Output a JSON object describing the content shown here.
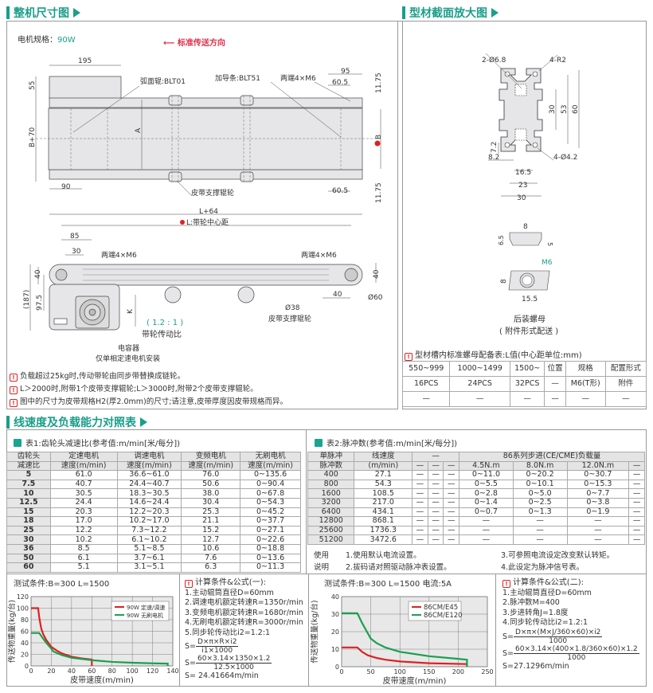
{
  "sections": {
    "dimensions": "整机尺寸图",
    "profile": "型材截面放大图",
    "speed_load": "线速度及负载能力对照表"
  },
  "motor_spec": {
    "label": "电机规格：",
    "value": "90W"
  },
  "direction": "标准传送方向",
  "top_view": {
    "d195": "195",
    "d55": "55",
    "b70": "B+70",
    "d90": "90",
    "arc_roller": "弧面辊:BLT01",
    "a": "A",
    "guide": "加导条:BLT51",
    "m6": "两端4×M6",
    "d95": "95",
    "d605a": "60.5",
    "d1175a": "11.75",
    "b": "B",
    "support": "皮带支撑辊轮",
    "d605b": "60.5",
    "d1175b": "11.75"
  },
  "side_view": {
    "l64": "L+64",
    "l_center": "L:带轮中心距",
    "d85": "85",
    "d30": "30",
    "m6_left": "两端4×M6",
    "m6_right": "两端4×M6",
    "d40a": "40",
    "d975": "97.5",
    "d187": "(187)",
    "k": "K",
    "ratio": "( 1.2 : 1 )",
    "ratio_label": "带轮传动比",
    "d38": "Ø38",
    "support": "皮带支撑辊轮",
    "d40b": "40",
    "d60": "Ø60",
    "d40c": "40",
    "capacitor": "电容器",
    "capacitor_note": "仅单相定速电机安装"
  },
  "notes": [
    "负载超过25kg时,传动带轮由同步带替换成链轮。",
    "L＞2000时,附带1个皮带支撑辊轮;L＞3000时,附带2个皮带支撑辊轮。",
    "图中的尺寸为皮带规格H2(厚2.0mm)的尺寸;请注意,皮带厚度因皮带规格而异。"
  ],
  "profile": {
    "d68": "2-Ø6.8",
    "r2": "4-R2",
    "d30": "30",
    "d53": "53",
    "d60": "60",
    "d72": "7.2",
    "d82": "8.2",
    "d42": "4-Ø4.2",
    "d165": "16.5",
    "d23": "23",
    "d30b": "30"
  },
  "nut": {
    "d8": "8",
    "d65": "6.5",
    "d5": "5",
    "m6": "M6",
    "d8b": "8",
    "d155": "15.5",
    "name": "后装螺母",
    "note": "( 附件形式配送 )"
  },
  "nut_table": {
    "title": "型材槽内标准螺母配备表:L值(中心距单位:mm)",
    "headers": [
      "550~999",
      "1000~1499",
      "1500~",
      "位置",
      "规格",
      "配置形式"
    ],
    "rows": [
      [
        "16PCS",
        "24PCS",
        "32PCS",
        "—",
        "M6(T形)",
        "附件"
      ],
      [
        "—",
        "—",
        "—",
        "—",
        "—",
        "—"
      ]
    ]
  },
  "table1": {
    "title": "表1:齿轮头减速比(参考值:m/min[米/每分])",
    "header1": [
      "齿轮头",
      "定速电机",
      "调速电机",
      "变频电机",
      "无刷电机"
    ],
    "header2": [
      "减速比",
      "速度(m/min)",
      "速度(m/min)",
      "速度(m/min)",
      "速度(m/min)"
    ],
    "rows": [
      [
        "5",
        "61.0",
        "36.6~61.0",
        "76.0",
        "0~135.6"
      ],
      [
        "7.5",
        "40.7",
        "24.4~40.7",
        "50.6",
        "0~90.4"
      ],
      [
        "10",
        "30.5",
        "18.3~30.5",
        "38.0",
        "0~67.8"
      ],
      [
        "12.5",
        "24.4",
        "14.6~24.4",
        "30.4",
        "0~54.3"
      ],
      [
        "15",
        "20.3",
        "12.2~20.3",
        "25.3",
        "0~45.2"
      ],
      [
        "18",
        "17.0",
        "10.2~17.0",
        "21.1",
        "0~37.7"
      ],
      [
        "25",
        "12.2",
        "7.3~12.2",
        "15.2",
        "0~27.1"
      ],
      [
        "30",
        "10.2",
        "6.1~10.2",
        "12.7",
        "0~22.6"
      ],
      [
        "36",
        "8.5",
        "5.1~8.5",
        "10.6",
        "0~18.8"
      ],
      [
        "50",
        "6.1",
        "3.7~6.1",
        "7.6",
        "0~13.6"
      ],
      [
        "60",
        "5.1",
        "3.1~5.1",
        "6.3",
        "0~11.3"
      ]
    ]
  },
  "table2": {
    "title": "表2:脉冲数(参考值:m/min[米/每分])",
    "header1": [
      "单脉冲",
      "线速度",
      "—",
      "86系列步进(CE/CME)负载量"
    ],
    "header2": [
      "脉冲数",
      "(m/min)",
      "—",
      "—",
      "—",
      "4.5N.m",
      "8.0N.m",
      "12.0N.m",
      "—"
    ],
    "rows": [
      [
        "400",
        "27.1",
        "—",
        "—",
        "—",
        "0~11.0",
        "0~20.2",
        "0~30.7",
        "—"
      ],
      [
        "800",
        "54.3",
        "—",
        "—",
        "—",
        "0~5.5",
        "0~10.1",
        "0~15.3",
        "—"
      ],
      [
        "1600",
        "108.5",
        "—",
        "—",
        "—",
        "0~2.8",
        "0~5.0",
        "0~7.7",
        "—"
      ],
      [
        "3200",
        "217.0",
        "—",
        "—",
        "—",
        "0~1.4",
        "0~2.5",
        "0~3.8",
        "—"
      ],
      [
        "6400",
        "434.1",
        "—",
        "—",
        "—",
        "0~0.7",
        "0~1.3",
        "0~1.9",
        "—"
      ],
      [
        "12800",
        "868.1",
        "—",
        "—",
        "—",
        "—",
        "—",
        "—",
        "—"
      ],
      [
        "25600",
        "1736.3",
        "—",
        "—",
        "—",
        "—",
        "—",
        "—",
        "—"
      ],
      [
        "51200",
        "3472.6",
        "—",
        "—",
        "—",
        "—",
        "—",
        "—",
        "—"
      ]
    ],
    "usage": {
      "label1": "使用",
      "label2": "说明",
      "n1": "1.使用默认电流设置。",
      "n2": "2.拔码请对照驱动脉冲表设置。",
      "n3": "3.可参照电流设定改变默认转矩。",
      "n4": "4.此设定为脉冲信号表。"
    }
  },
  "formula1": {
    "title": "计算条件&公式(一):",
    "lines": [
      "1.主动辊筒直径D=60mm",
      "2.调速电机额定转速R=1350r/min",
      "3.变频电机额定转速R=1680r/min",
      "4.无刷电机额定转速R=3000r/min",
      "5.同步轮传动比i2=1.2:1"
    ],
    "s": "S=",
    "f1_num": "D×π×R×i2",
    "f1_den": "i1×1000",
    "f2_num": "60×3.14×1350×1.2",
    "f2_den": "12.5×1000",
    "result": "S= 24.41664m/min"
  },
  "formula2": {
    "title": "计算条件&公式(二):",
    "lines": [
      "1.主动辊筒直径D=60mm",
      "2.脉冲数M=400",
      "3.步进转角J=1.8度",
      "4.同步轮传动比i2=1.2:1"
    ],
    "s": "S=",
    "f1_num": "D×π×(M×J/360×60)×i2",
    "f1_den": "1000",
    "f2_num": "60×3.14×(400×1.8/360×60)×1.2",
    "f2_den": "1000",
    "result": "S=27.1296m/min"
  },
  "chart_data": [
    {
      "type": "line",
      "title": "测试条件:B=300   L=1500",
      "xlabel": "皮带速度(m/min)",
      "ylabel": "传送物重量(kg/台)",
      "xlim": [
        0,
        140
      ],
      "ylim": [
        0,
        120
      ],
      "xticks": [
        "0",
        "20",
        "40",
        "60",
        "80",
        "100",
        "120",
        "140"
      ],
      "yticks": [
        "0",
        "20",
        "40",
        "60",
        "80",
        "100",
        "120"
      ],
      "grid": true,
      "legend": "top-right",
      "series": [
        {
          "name": "90W 定速/调速",
          "color": "#e02020",
          "x": [
            0,
            7,
            8,
            10,
            12,
            15,
            20,
            25,
            30,
            40,
            50,
            60,
            60
          ],
          "y": [
            100,
            100,
            85,
            65,
            55,
            45,
            33,
            27,
            22,
            16,
            13,
            11,
            0
          ]
        },
        {
          "name": "90W 无刷电机",
          "color": "#1aa050",
          "x": [
            0,
            8,
            10,
            15,
            20,
            22,
            30,
            40,
            50,
            60,
            80,
            100,
            120,
            135,
            135
          ],
          "y": [
            57,
            57,
            52,
            40,
            30,
            25,
            19,
            14,
            12,
            10,
            7,
            5.5,
            4.5,
            4,
            0
          ]
        }
      ]
    },
    {
      "type": "line",
      "title": "测试条件:B=300   L=1500  电流:5A",
      "xlabel": "皮带速度(m/min)",
      "ylabel": "传送物重量(kg/台)",
      "xlim": [
        0,
        250
      ],
      "ylim": [
        0,
        40
      ],
      "xticks": [
        "0",
        "50",
        "100",
        "150",
        "200",
        "250"
      ],
      "yticks": [
        "0",
        "10",
        "20",
        "30",
        "40"
      ],
      "grid": true,
      "legend": "top-right",
      "series": [
        {
          "name": "86CM/E45",
          "color": "#e02020",
          "x": [
            0,
            27,
            35,
            45,
            60,
            75,
            100,
            150,
            215,
            215
          ],
          "y": [
            11,
            11,
            8.5,
            6.5,
            5,
            4,
            3,
            2,
            1.5,
            0
          ]
        },
        {
          "name": "86CM/E120",
          "color": "#1aa050",
          "x": [
            0,
            27,
            35,
            45,
            50,
            60,
            75,
            100,
            150,
            200,
            215,
            215
          ],
          "y": [
            30.5,
            30.5,
            25,
            19,
            16,
            13.5,
            11,
            8.5,
            6,
            4.5,
            4,
            0
          ]
        }
      ]
    }
  ],
  "colors": {
    "accent": "#1a9e8a",
    "warning": "#d22222",
    "red_arrow": "#e0304a"
  }
}
